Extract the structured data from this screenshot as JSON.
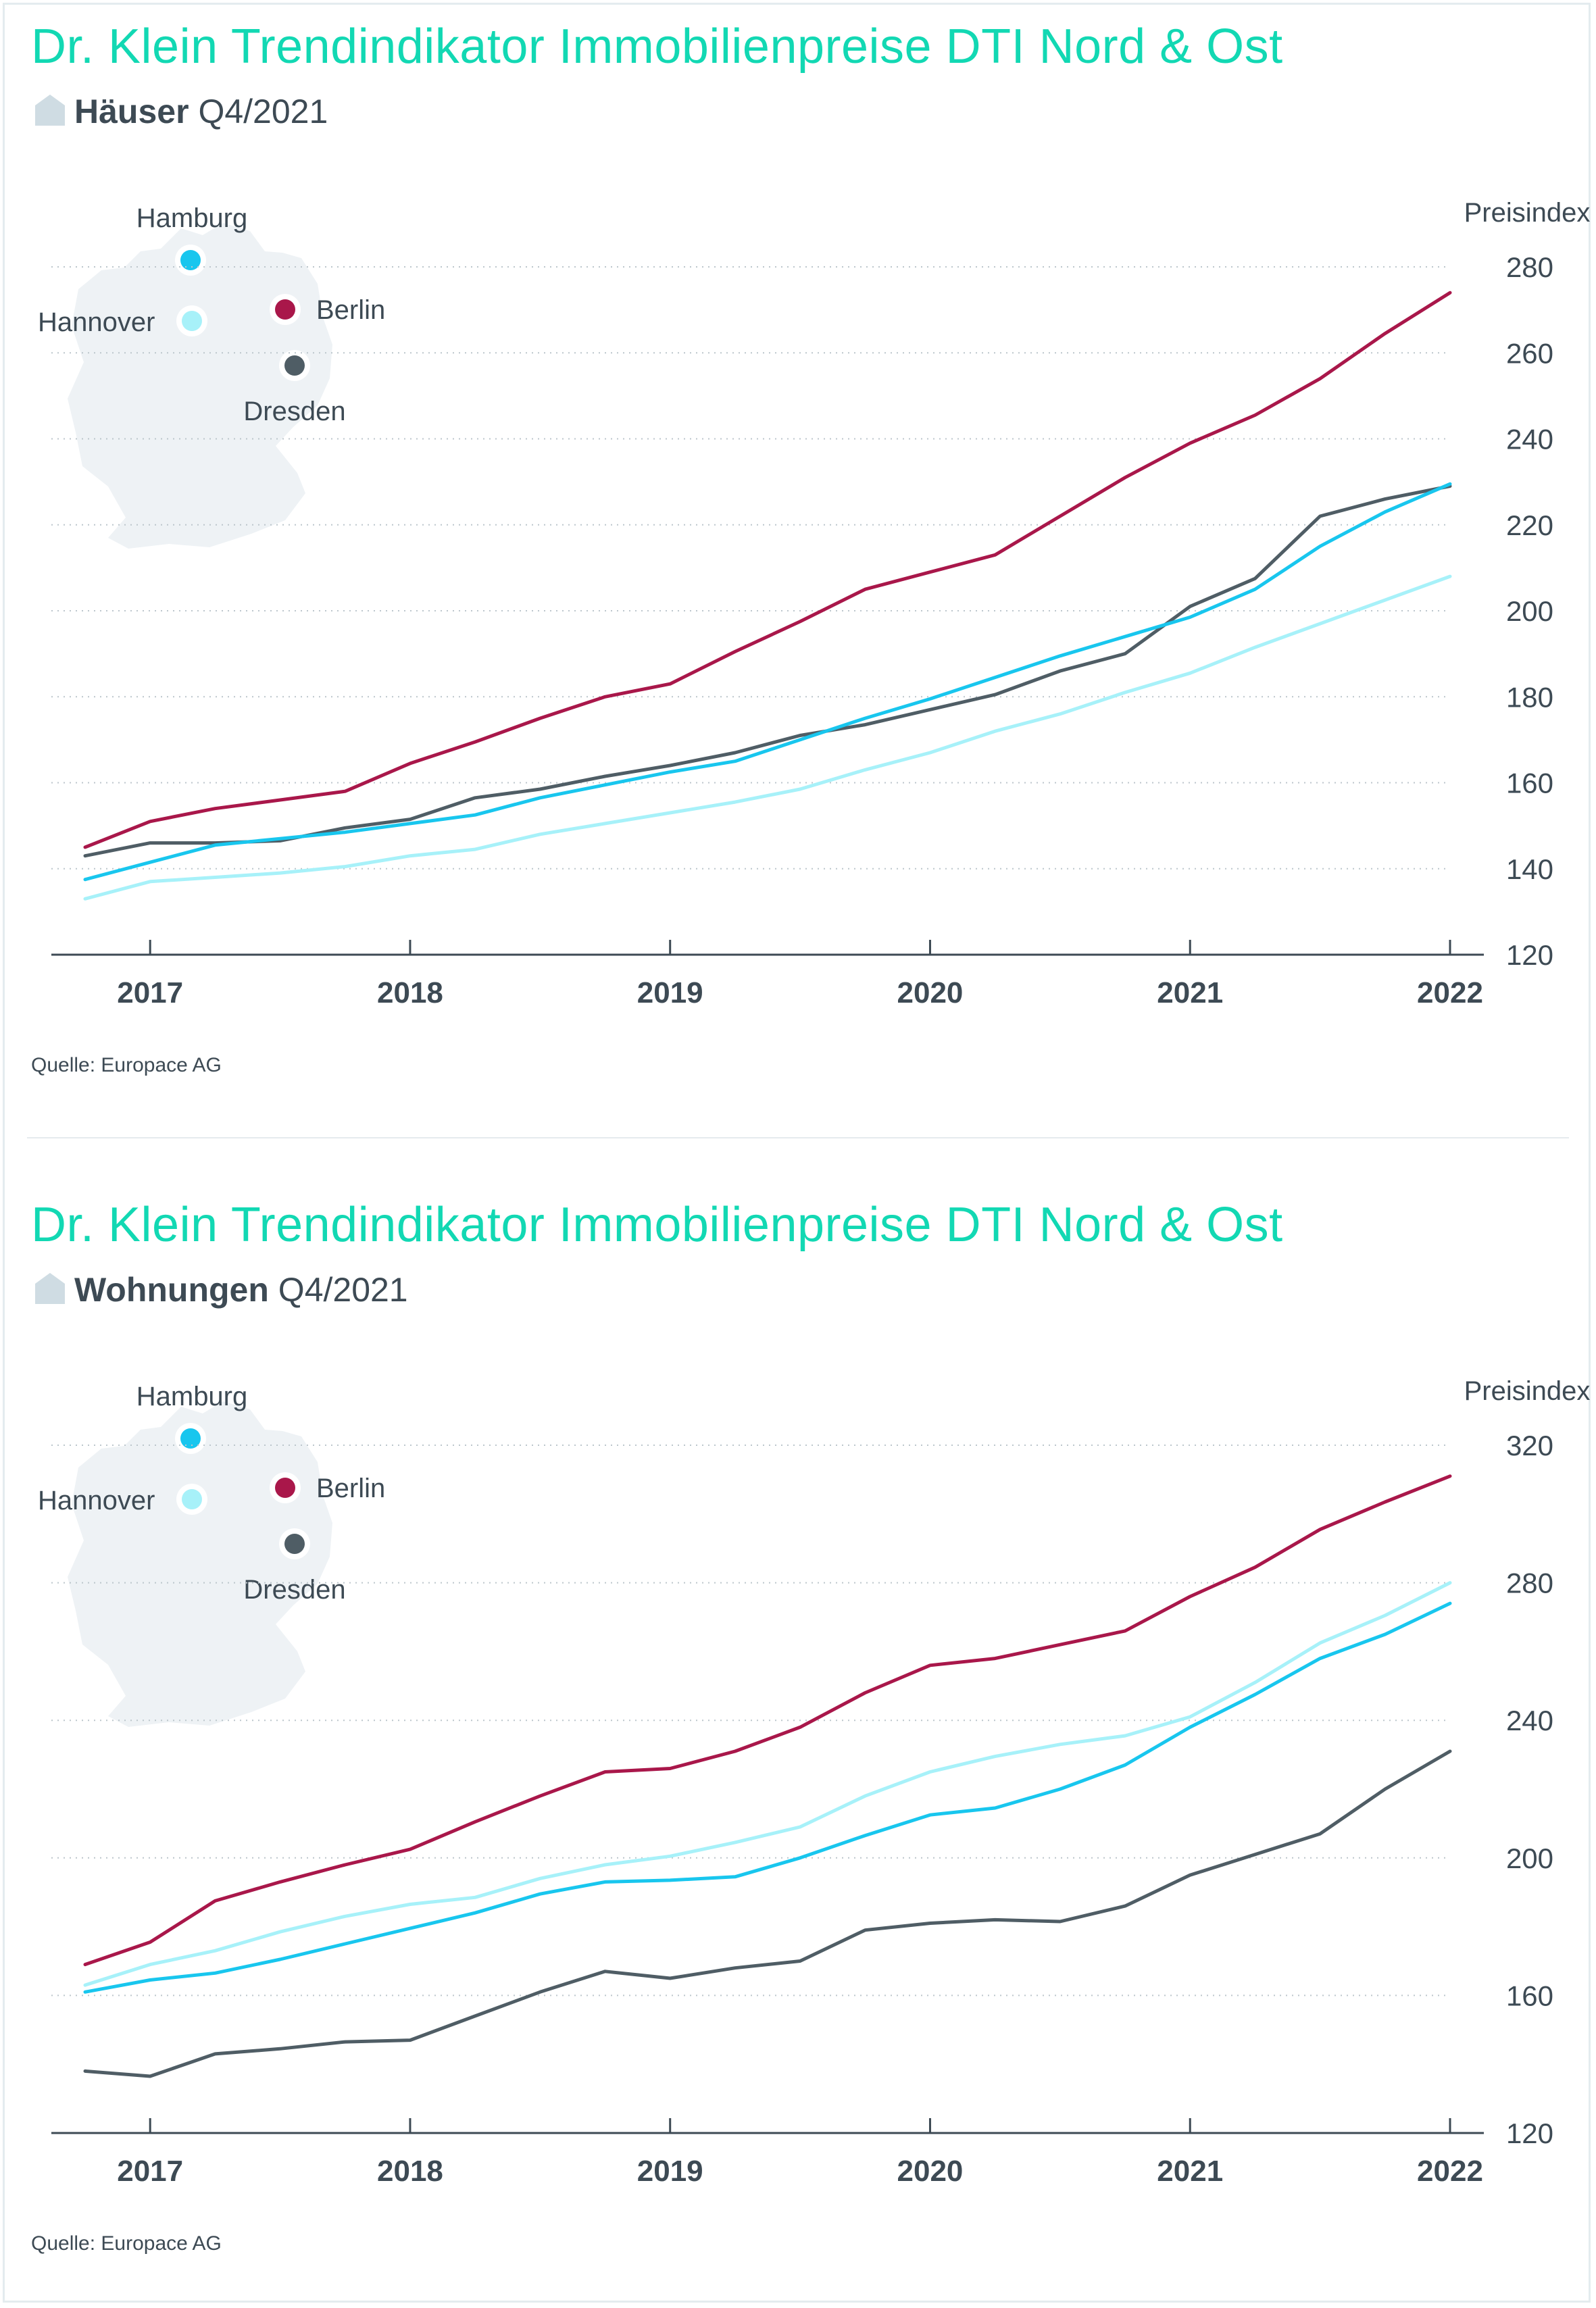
{
  "colors": {
    "title": "#12d8b3",
    "berlin": "#a9174a",
    "hamburg": "#18c6ee",
    "hannover": "#a7f1f9",
    "dresden": "#4f5d65",
    "grid": "#bcc6cc",
    "map": "#eef2f5"
  },
  "icons": {
    "house": "house-icon"
  },
  "charts": [
    {
      "title": "Dr. Klein Trendindikator Immobilienpreise DTI Nord & Ost",
      "subtitle_bold": "Häuser",
      "subtitle_rest": "Q4/2021",
      "source": "Quelle: Europace AG",
      "map_labels": {
        "hamburg": "Hamburg",
        "hannover": "Hannover",
        "berlin": "Berlin",
        "dresden": "Dresden"
      }
    },
    {
      "title": "Dr. Klein Trendindikator Immobilienpreise DTI Nord & Ost",
      "subtitle_bold": "Wohnungen",
      "subtitle_rest": "Q4/2021",
      "source": "Quelle: Europace AG",
      "map_labels": {
        "hamburg": "Hamburg",
        "hannover": "Hannover",
        "berlin": "Berlin",
        "dresden": "Dresden"
      }
    }
  ],
  "chart_data": [
    {
      "type": "line",
      "ylabel": "Preisindex",
      "ylim": [
        120,
        280
      ],
      "yticks": [
        120,
        140,
        160,
        180,
        200,
        220,
        240,
        260,
        280
      ],
      "xlim": [
        2016.75,
        2022.0
      ],
      "xticks": [
        2017,
        2018,
        2019,
        2020,
        2021,
        2022
      ],
      "grid": true,
      "legend": "map-top-left",
      "x": [
        2016.75,
        2017.0,
        2017.25,
        2017.5,
        2017.75,
        2018.0,
        2018.25,
        2018.5,
        2018.75,
        2019.0,
        2019.25,
        2019.5,
        2019.75,
        2020.0,
        2020.25,
        2020.5,
        2020.75,
        2021.0,
        2021.25,
        2021.5,
        2021.75,
        2022.0
      ],
      "series": [
        {
          "name": "Hannover",
          "color": "#a7f1f9",
          "values": [
            133,
            137,
            138,
            139,
            140.5,
            143,
            144.5,
            148,
            150.5,
            153,
            155.5,
            158.5,
            163,
            167,
            172,
            176,
            181,
            185.5,
            191.5,
            197,
            202.5,
            208
          ]
        },
        {
          "name": "Dresden",
          "color": "#4f5d65",
          "values": [
            143,
            146,
            146,
            146.5,
            149.5,
            151.5,
            156.5,
            158.5,
            161.5,
            164,
            167,
            171,
            173.5,
            177,
            180.5,
            186,
            190,
            201,
            207.5,
            222,
            226,
            229
          ]
        },
        {
          "name": "Hamburg",
          "color": "#18c6ee",
          "values": [
            137.5,
            141.5,
            145.5,
            147,
            148.5,
            150.5,
            152.5,
            156.5,
            159.5,
            162.5,
            165,
            170,
            175,
            179.5,
            184.5,
            189.5,
            194,
            198.5,
            205,
            215,
            223,
            229.5
          ]
        },
        {
          "name": "Berlin",
          "color": "#a9174a",
          "values": [
            145,
            151,
            154,
            156,
            158,
            164.5,
            169.5,
            175,
            180,
            183,
            190.5,
            197.5,
            205,
            209,
            213,
            222,
            231,
            239,
            245.5,
            254,
            264.5,
            274
          ]
        }
      ]
    },
    {
      "type": "line",
      "ylabel": "Preisindex",
      "ylim": [
        120,
        320
      ],
      "yticks": [
        120,
        160,
        200,
        240,
        280,
        320
      ],
      "xlim": [
        2016.75,
        2022.0
      ],
      "xticks": [
        2017,
        2018,
        2019,
        2020,
        2021,
        2022
      ],
      "grid": true,
      "legend": "map-top-left",
      "x": [
        2016.75,
        2017.0,
        2017.25,
        2017.5,
        2017.75,
        2018.0,
        2018.25,
        2018.5,
        2018.75,
        2019.0,
        2019.25,
        2019.5,
        2019.75,
        2020.0,
        2020.25,
        2020.5,
        2020.75,
        2021.0,
        2021.25,
        2021.5,
        2021.75,
        2022.0
      ],
      "series": [
        {
          "name": "Dresden",
          "color": "#4f5d65",
          "values": [
            138,
            136.5,
            143,
            144.5,
            146.5,
            147,
            154,
            161,
            167,
            165,
            168,
            170,
            179,
            181,
            182,
            181.5,
            186,
            195,
            201,
            207,
            220,
            231
          ]
        },
        {
          "name": "Hannover",
          "color": "#a7f1f9",
          "values": [
            163,
            169,
            173,
            178.5,
            183,
            186.5,
            188.5,
            194,
            198,
            200.5,
            204.5,
            209,
            218,
            225,
            229.5,
            233,
            235.5,
            241,
            251,
            262.5,
            270.5,
            280
          ]
        },
        {
          "name": "Hamburg",
          "color": "#18c6ee",
          "values": [
            161,
            164.5,
            166.5,
            170.5,
            175,
            179.5,
            184,
            189.5,
            193,
            193.5,
            194.5,
            200,
            206.5,
            212.5,
            214.5,
            220,
            227,
            238,
            247.5,
            258,
            265,
            274
          ]
        },
        {
          "name": "Berlin",
          "color": "#a9174a",
          "values": [
            169,
            175.5,
            187.5,
            193,
            198,
            202.5,
            210.5,
            218,
            225,
            226,
            231,
            238,
            248,
            256,
            258,
            262,
            266,
            276,
            284.5,
            295.5,
            303.5,
            311
          ]
        }
      ]
    }
  ]
}
